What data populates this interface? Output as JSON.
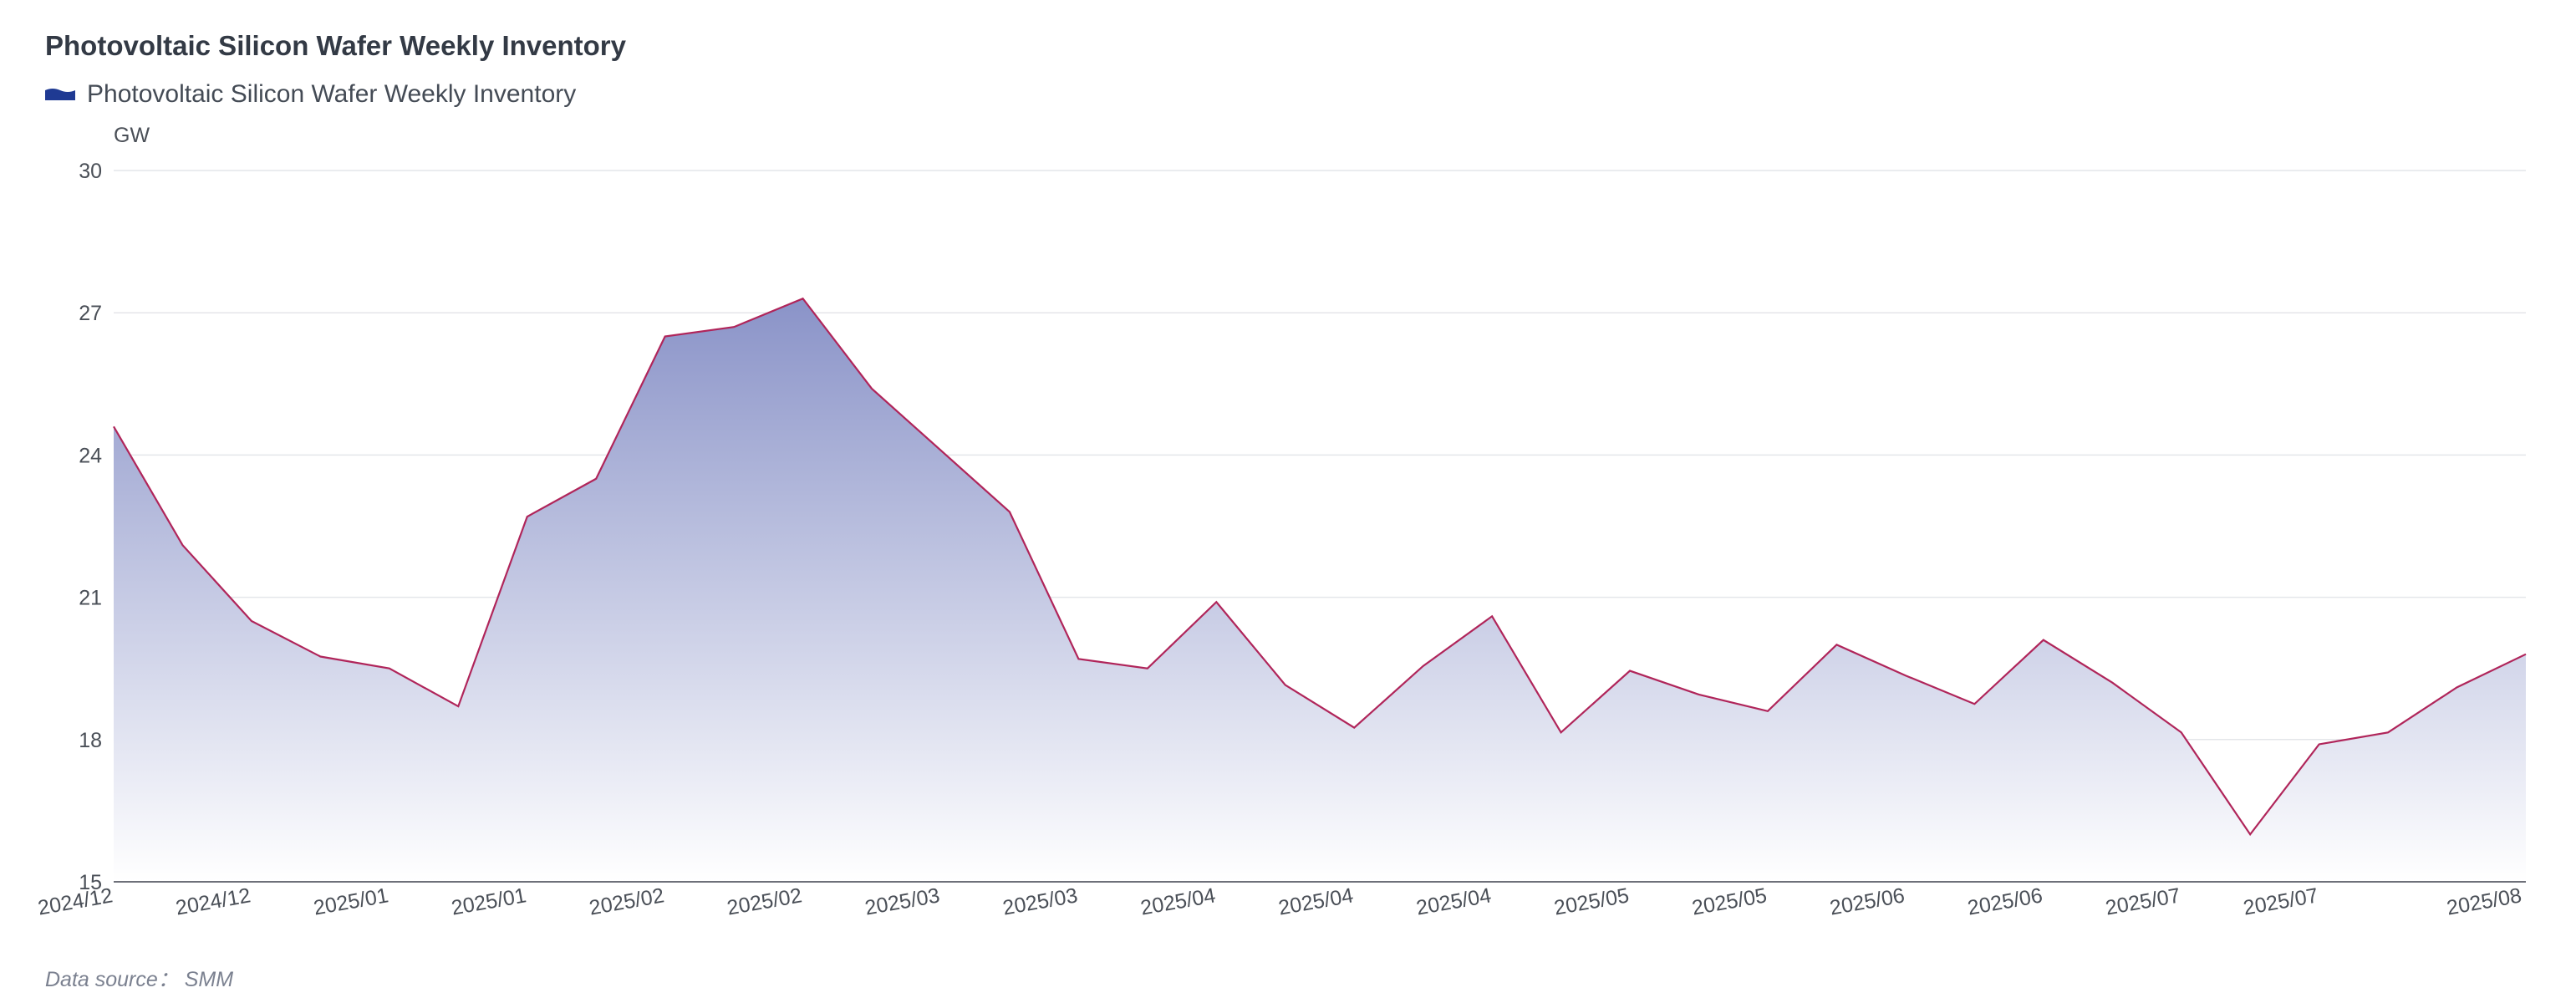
{
  "chart_data": {
    "type": "area",
    "title": "Photovoltaic Silicon Wafer Weekly Inventory",
    "ylabel": "GW",
    "ylim": [
      15,
      30
    ],
    "yticks": [
      15,
      18,
      21,
      24,
      27,
      30
    ],
    "grid": true,
    "legend_position": "top-left",
    "series": [
      {
        "name": "Photovoltaic Silicon Wafer Weekly Inventory",
        "values": [
          24.6,
          22.1,
          20.5,
          19.75,
          19.5,
          18.7,
          22.7,
          23.5,
          26.5,
          26.7,
          27.3,
          25.4,
          24.1,
          22.8,
          19.7,
          19.5,
          20.9,
          19.15,
          18.25,
          19.55,
          20.6,
          18.15,
          19.45,
          18.95,
          18.6,
          20.0,
          19.35,
          18.75,
          20.1,
          19.2,
          18.15,
          16.0,
          17.9,
          18.15,
          19.1,
          19.8
        ]
      }
    ],
    "x_tick_labels": [
      {
        "index": 0,
        "label": "2024/12"
      },
      {
        "index": 2,
        "label": "2024/12"
      },
      {
        "index": 4,
        "label": "2025/01"
      },
      {
        "index": 6,
        "label": "2025/01"
      },
      {
        "index": 8,
        "label": "2025/02"
      },
      {
        "index": 10,
        "label": "2025/02"
      },
      {
        "index": 12,
        "label": "2025/03"
      },
      {
        "index": 14,
        "label": "2025/03"
      },
      {
        "index": 16,
        "label": "2025/04"
      },
      {
        "index": 18,
        "label": "2025/04"
      },
      {
        "index": 20,
        "label": "2025/04"
      },
      {
        "index": 22,
        "label": "2025/05"
      },
      {
        "index": 24,
        "label": "2025/05"
      },
      {
        "index": 26,
        "label": "2025/06"
      },
      {
        "index": 28,
        "label": "2025/06"
      },
      {
        "index": 30,
        "label": "2025/07"
      },
      {
        "index": 32,
        "label": "2025/07"
      },
      {
        "index": 35,
        "label": "2025/08"
      }
    ],
    "colors": {
      "line": "#b0255a",
      "area_top": "#8a93c8",
      "area_bottom": "#ffffff",
      "legend_swatch": "#1f3a93",
      "grid": "#e4e6ea",
      "axis": "#6e7079"
    }
  },
  "source_note": "Data source： SMM"
}
